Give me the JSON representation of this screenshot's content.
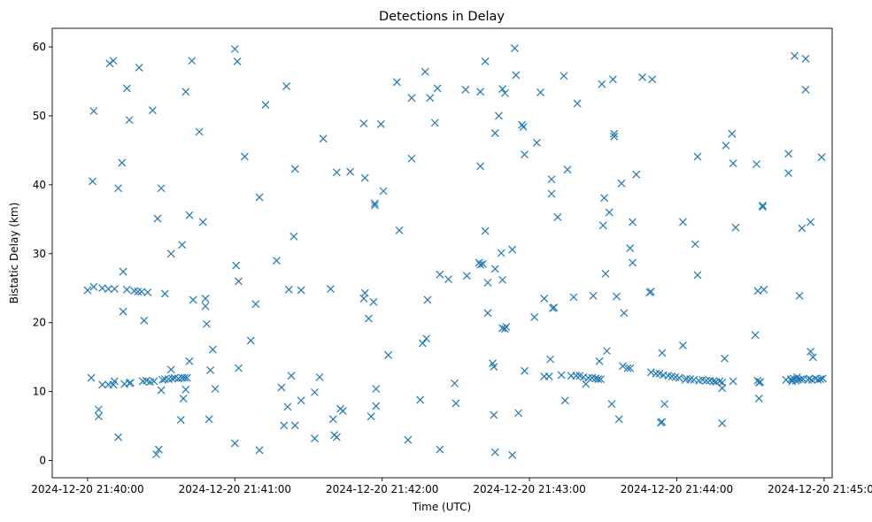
{
  "chart_data": {
    "type": "scatter",
    "title": "Detections in Delay",
    "xlabel": "Time (UTC)",
    "ylabel": "Bistatic Delay (km)",
    "x_unit": "seconds since 2024-12-20 21:40:00 UTC",
    "xlim": [
      -14.4,
      303.3
    ],
    "ylim": [
      -2.5,
      62.7
    ],
    "x_ticks": [
      0,
      60,
      120,
      180,
      240,
      300
    ],
    "x_tick_labels": [
      "2024-12-20 21:40:00",
      "2024-12-20 21:41:00",
      "2024-12-20 21:42:00",
      "2024-12-20 21:43:00",
      "2024-12-20 21:44:00",
      "2024-12-20 21:45:00"
    ],
    "y_ticks": [
      0,
      10,
      20,
      30,
      40,
      50,
      60
    ],
    "y_tick_labels": [
      "0",
      "10",
      "20",
      "30",
      "40",
      "50",
      "60"
    ],
    "marker": "x",
    "color": "#1f77b4",
    "series": [
      {
        "name": "Detections",
        "points": [
          [
            0,
            24.7
          ],
          [
            1.5,
            12.0
          ],
          [
            2,
            40.5
          ],
          [
            2.5,
            50.7
          ],
          [
            2.5,
            25.2
          ],
          [
            4.5,
            7.4
          ],
          [
            4.5,
            6.4
          ],
          [
            6,
            25.0
          ],
          [
            6,
            11.0
          ],
          [
            8.5,
            24.9
          ],
          [
            8.5,
            11.0
          ],
          [
            9,
            57.6
          ],
          [
            10.5,
            11.0
          ],
          [
            10.5,
            58.0
          ],
          [
            11,
            24.9
          ],
          [
            11,
            11.5
          ],
          [
            12.5,
            3.4
          ],
          [
            12.5,
            39.5
          ],
          [
            14,
            43.2
          ],
          [
            14.5,
            27.4
          ],
          [
            14.5,
            21.6
          ],
          [
            15,
            11.1
          ],
          [
            16,
            54.0
          ],
          [
            16,
            24.8
          ],
          [
            17,
            11.2
          ],
          [
            17,
            49.4
          ],
          [
            17.5,
            11.3
          ],
          [
            19,
            24.6
          ],
          [
            20.5,
            24.5
          ],
          [
            21,
            57.0
          ],
          [
            22,
            24.5
          ],
          [
            22.5,
            11.5
          ],
          [
            23,
            20.3
          ],
          [
            24,
            11.6
          ],
          [
            24.5,
            24.4
          ],
          [
            25.5,
            11.4
          ],
          [
            26.5,
            50.8
          ],
          [
            27,
            11.5
          ],
          [
            28,
            0.9
          ],
          [
            28.5,
            35.1
          ],
          [
            29,
            1.6
          ],
          [
            30,
            10.2
          ],
          [
            30,
            39.5
          ],
          [
            30.5,
            11.7
          ],
          [
            31.5,
            24.2
          ],
          [
            31.5,
            11.8
          ],
          [
            33,
            11.8
          ],
          [
            34,
            30.0
          ],
          [
            34,
            13.2
          ],
          [
            34.5,
            11.9
          ],
          [
            35.5,
            12.0
          ],
          [
            37,
            11.9
          ],
          [
            38,
            5.9
          ],
          [
            38.5,
            12.0
          ],
          [
            38.5,
            31.3
          ],
          [
            39,
            9.0
          ],
          [
            39.5,
            12.0
          ],
          [
            40,
            53.5
          ],
          [
            40,
            10.3
          ],
          [
            40.5,
            12.0
          ],
          [
            41.5,
            14.4
          ],
          [
            41.5,
            35.6
          ],
          [
            42.5,
            58.0
          ],
          [
            43,
            23.3
          ],
          [
            45.5,
            47.7
          ],
          [
            47,
            34.6
          ],
          [
            48,
            23.5
          ],
          [
            48,
            22.4
          ],
          [
            48.5,
            19.8
          ],
          [
            49.5,
            6.0
          ],
          [
            50,
            13.1
          ],
          [
            51,
            16.1
          ],
          [
            52,
            10.4
          ],
          [
            60,
            59.7
          ],
          [
            60,
            2.5
          ],
          [
            60.5,
            28.3
          ],
          [
            61,
            57.9
          ],
          [
            61.5,
            26.0
          ],
          [
            61.5,
            13.4
          ],
          [
            64,
            44.1
          ],
          [
            66.5,
            17.4
          ],
          [
            68.5,
            22.7
          ],
          [
            70,
            38.2
          ],
          [
            70,
            1.5
          ],
          [
            72.5,
            51.6
          ],
          [
            77,
            29.0
          ],
          [
            79,
            10.6
          ],
          [
            80,
            5.1
          ],
          [
            81,
            54.3
          ],
          [
            81.5,
            7.8
          ],
          [
            82,
            24.8
          ],
          [
            83,
            12.3
          ],
          [
            84,
            32.5
          ],
          [
            84.5,
            42.3
          ],
          [
            84.5,
            5.1
          ],
          [
            87,
            24.7
          ],
          [
            87,
            8.7
          ],
          [
            92.5,
            3.2
          ],
          [
            92.5,
            9.9
          ],
          [
            94.5,
            12.1
          ],
          [
            96,
            46.7
          ],
          [
            99,
            24.9
          ],
          [
            100,
            6.0
          ],
          [
            100.5,
            3.7
          ],
          [
            101.5,
            3.4
          ],
          [
            101.5,
            41.8
          ],
          [
            103,
            7.5
          ],
          [
            104,
            7.2
          ],
          [
            107,
            41.9
          ],
          [
            112.5,
            23.5
          ],
          [
            112.5,
            48.9
          ],
          [
            113,
            41.0
          ],
          [
            113,
            24.3
          ],
          [
            114.5,
            20.6
          ],
          [
            115.5,
            6.4
          ],
          [
            116.5,
            23.0
          ],
          [
            117,
            37.3
          ],
          [
            117,
            37.0
          ],
          [
            117.5,
            10.4
          ],
          [
            117.5,
            7.9
          ],
          [
            119.5,
            48.8
          ],
          [
            120.5,
            39.1
          ],
          [
            122.5,
            15.3
          ],
          [
            126,
            54.9
          ],
          [
            127,
            33.4
          ],
          [
            130.5,
            3.0
          ],
          [
            132,
            52.6
          ],
          [
            132,
            43.8
          ],
          [
            135.5,
            8.8
          ],
          [
            136.5,
            17.0
          ],
          [
            137.5,
            56.4
          ],
          [
            138,
            17.7
          ],
          [
            138.5,
            23.3
          ],
          [
            139.5,
            52.6
          ],
          [
            141.5,
            49.0
          ],
          [
            142.5,
            54.0
          ],
          [
            143.5,
            1.6
          ],
          [
            143.5,
            27.0
          ],
          [
            147,
            26.3
          ],
          [
            149.5,
            11.2
          ],
          [
            150,
            8.3
          ],
          [
            154,
            53.8
          ],
          [
            154.5,
            26.8
          ],
          [
            159.5,
            28.7
          ],
          [
            160,
            28.4
          ],
          [
            160,
            53.5
          ],
          [
            160,
            42.7
          ],
          [
            161,
            28.5
          ],
          [
            162,
            57.9
          ],
          [
            162,
            33.3
          ],
          [
            163,
            21.4
          ],
          [
            163,
            25.8
          ],
          [
            165,
            14.1
          ],
          [
            165.5,
            6.6
          ],
          [
            165.5,
            13.6
          ],
          [
            166,
            1.2
          ],
          [
            166,
            47.5
          ],
          [
            166,
            27.8
          ],
          [
            167.5,
            50.0
          ],
          [
            168.5,
            30.1
          ],
          [
            169,
            26.2
          ],
          [
            169,
            53.9
          ],
          [
            169,
            19.2
          ],
          [
            170,
            53.3
          ],
          [
            170,
            19.1
          ],
          [
            170.5,
            19.4
          ],
          [
            173,
            30.6
          ],
          [
            173,
            0.8
          ],
          [
            174,
            59.8
          ],
          [
            174.5,
            55.9
          ],
          [
            175.5,
            6.9
          ],
          [
            177,
            48.7
          ],
          [
            177.5,
            48.4
          ],
          [
            178,
            44.4
          ],
          [
            178,
            13.0
          ],
          [
            182,
            20.8
          ],
          [
            183,
            46.1
          ],
          [
            184.5,
            53.4
          ],
          [
            186,
            12.2
          ],
          [
            186,
            23.5
          ],
          [
            188,
            12.2
          ],
          [
            188.5,
            14.7
          ],
          [
            189,
            38.7
          ],
          [
            189,
            40.8
          ],
          [
            189.5,
            22.1
          ],
          [
            190,
            22.2
          ],
          [
            191.5,
            35.3
          ],
          [
            193,
            12.4
          ],
          [
            194,
            55.8
          ],
          [
            194.5,
            8.7
          ],
          [
            195.5,
            42.2
          ],
          [
            197,
            12.3
          ],
          [
            198,
            23.7
          ],
          [
            199,
            12.3
          ],
          [
            199.5,
            51.8
          ],
          [
            200.5,
            12.3
          ],
          [
            202,
            12.1
          ],
          [
            203,
            11.1
          ],
          [
            204,
            12.0
          ],
          [
            205.5,
            12.0
          ],
          [
            206,
            23.9
          ],
          [
            207,
            11.9
          ],
          [
            208,
            11.8
          ],
          [
            208.5,
            14.4
          ],
          [
            209,
            11.8
          ],
          [
            209.5,
            54.6
          ],
          [
            210,
            34.1
          ],
          [
            210.5,
            38.1
          ],
          [
            211,
            27.1
          ],
          [
            211.5,
            15.9
          ],
          [
            212.5,
            36.0
          ],
          [
            213.5,
            8.2
          ],
          [
            214,
            55.3
          ],
          [
            214.5,
            47.4
          ],
          [
            214.5,
            47.0
          ],
          [
            215.5,
            23.8
          ],
          [
            216.5,
            6.0
          ],
          [
            217.5,
            40.2
          ],
          [
            218,
            13.7
          ],
          [
            218.5,
            21.4
          ],
          [
            220,
            13.4
          ],
          [
            221,
            30.8
          ],
          [
            221,
            13.4
          ],
          [
            222,
            34.6
          ],
          [
            222,
            28.7
          ],
          [
            223.5,
            41.5
          ],
          [
            226,
            55.6
          ],
          [
            229,
            24.4
          ],
          [
            229.5,
            24.5
          ],
          [
            229.5,
            12.8
          ],
          [
            230,
            55.3
          ],
          [
            231.5,
            12.6
          ],
          [
            233,
            12.6
          ],
          [
            233.5,
            5.5
          ],
          [
            234,
            5.6
          ],
          [
            234,
            15.6
          ],
          [
            234.5,
            12.4
          ],
          [
            235,
            8.2
          ],
          [
            236.5,
            12.3
          ],
          [
            238,
            12.2
          ],
          [
            239.5,
            12.1
          ],
          [
            241,
            12.0
          ],
          [
            242.5,
            16.7
          ],
          [
            242.5,
            34.6
          ],
          [
            243.5,
            11.7
          ],
          [
            244,
            11.9
          ],
          [
            245.5,
            11.8
          ],
          [
            247,
            11.7
          ],
          [
            247.5,
            31.4
          ],
          [
            248.5,
            26.9
          ],
          [
            248.5,
            44.1
          ],
          [
            249,
            11.6
          ],
          [
            250.5,
            11.7
          ],
          [
            252,
            11.6
          ],
          [
            253.5,
            11.6
          ],
          [
            255,
            11.5
          ],
          [
            256,
            11.4
          ],
          [
            257.5,
            11.5
          ],
          [
            258.5,
            11.3
          ],
          [
            258.5,
            10.5
          ],
          [
            258.5,
            5.4
          ],
          [
            259.5,
            14.8
          ],
          [
            260,
            45.7
          ],
          [
            262.5,
            47.4
          ],
          [
            263,
            43.1
          ],
          [
            263,
            11.5
          ],
          [
            264,
            33.8
          ],
          [
            272,
            18.2
          ],
          [
            272.5,
            43.0
          ],
          [
            273,
            11.6
          ],
          [
            273,
            24.6
          ],
          [
            273.5,
            9.0
          ],
          [
            273.5,
            11.3
          ],
          [
            274,
            11.4
          ],
          [
            275,
            36.8
          ],
          [
            275,
            37.0
          ],
          [
            275.5,
            24.8
          ],
          [
            284.5,
            11.7
          ],
          [
            285.5,
            44.5
          ],
          [
            285.5,
            41.7
          ],
          [
            286.5,
            11.8
          ],
          [
            287,
            11.5
          ],
          [
            287.5,
            11.9
          ],
          [
            288,
            58.7
          ],
          [
            288.5,
            11.6
          ],
          [
            289,
            12.1
          ],
          [
            289.5,
            11.7
          ],
          [
            290,
            23.9
          ],
          [
            290.5,
            11.8
          ],
          [
            291,
            33.7
          ],
          [
            291.5,
            11.8
          ],
          [
            292.5,
            53.8
          ],
          [
            292.5,
            58.3
          ],
          [
            293.5,
            11.7
          ],
          [
            294,
            11.9
          ],
          [
            294.5,
            15.8
          ],
          [
            294.5,
            34.6
          ],
          [
            295,
            11.7
          ],
          [
            295.5,
            15.0
          ],
          [
            296.5,
            11.9
          ],
          [
            297.5,
            11.7
          ],
          [
            298.5,
            11.8
          ],
          [
            299,
            44.0
          ],
          [
            299.5,
            11.9
          ]
        ]
      }
    ]
  }
}
